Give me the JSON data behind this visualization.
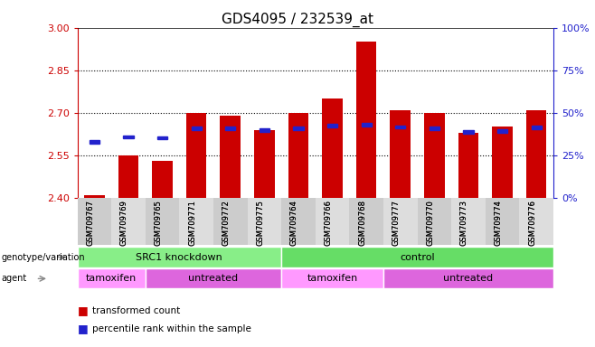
{
  "title": "GDS4095 / 232539_at",
  "samples": [
    "GSM709767",
    "GSM709769",
    "GSM709765",
    "GSM709771",
    "GSM709772",
    "GSM709775",
    "GSM709764",
    "GSM709766",
    "GSM709768",
    "GSM709777",
    "GSM709770",
    "GSM709773",
    "GSM709774",
    "GSM709776"
  ],
  "bar_values": [
    2.41,
    2.55,
    2.53,
    2.7,
    2.69,
    2.64,
    2.7,
    2.75,
    2.95,
    2.71,
    2.7,
    2.63,
    2.65,
    2.71
  ],
  "percentile_values": [
    2.598,
    2.615,
    2.612,
    2.645,
    2.645,
    2.638,
    2.645,
    2.655,
    2.658,
    2.65,
    2.645,
    2.632,
    2.636,
    2.648
  ],
  "ymin": 2.4,
  "ymax": 3.0,
  "yticks": [
    2.4,
    2.55,
    2.7,
    2.85,
    3.0
  ],
  "right_yticks": [
    0,
    25,
    50,
    75,
    100
  ],
  "bar_color": "#cc0000",
  "percentile_color": "#2222cc",
  "bar_width": 0.6,
  "groups": [
    {
      "label": "SRC1 knockdown",
      "start": 0,
      "end": 6,
      "color": "#88ee88"
    },
    {
      "label": "control",
      "start": 6,
      "end": 14,
      "color": "#66dd66"
    }
  ],
  "agents": [
    {
      "label": "tamoxifen",
      "start": 0,
      "end": 2,
      "color": "#ff99ff"
    },
    {
      "label": "untreated",
      "start": 2,
      "end": 6,
      "color": "#dd66dd"
    },
    {
      "label": "tamoxifen",
      "start": 6,
      "end": 9,
      "color": "#ff99ff"
    },
    {
      "label": "untreated",
      "start": 9,
      "end": 14,
      "color": "#dd66dd"
    }
  ],
  "legend_items": [
    {
      "label": "transformed count",
      "color": "#cc0000"
    },
    {
      "label": "percentile rank within the sample",
      "color": "#2222cc"
    }
  ],
  "left_label_color": "#cc0000",
  "right_label_color": "#2222cc",
  "title_fontsize": 11,
  "dotted_lines": [
    2.55,
    2.7,
    2.85
  ]
}
